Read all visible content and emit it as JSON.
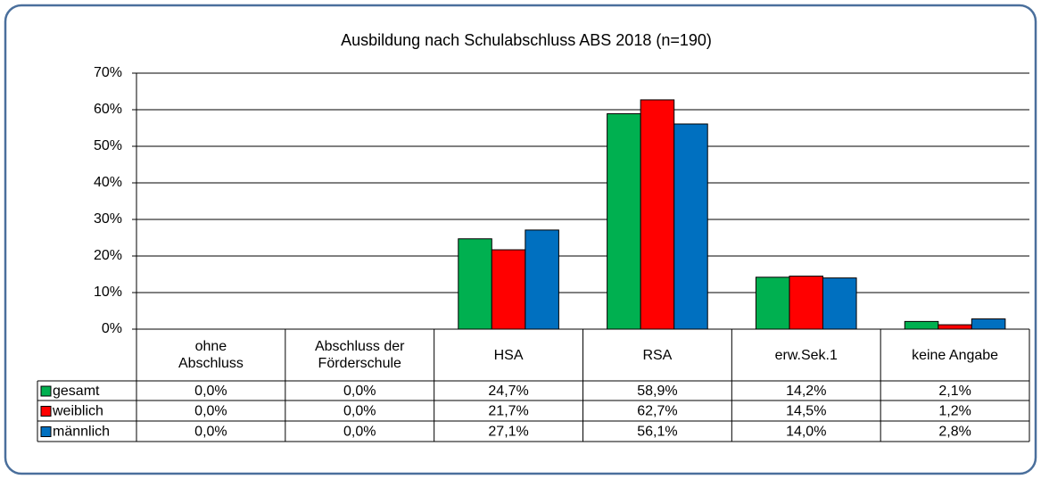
{
  "chart_data": {
    "type": "bar",
    "title": "Ausbildung  nach Schulabschluss ABS 2018 (n=190)",
    "categories": [
      "ohne\nAbschluss",
      "Abschluss der\nFörderschule",
      "HSA",
      "RSA",
      "erw.Sek.1",
      "keine Angabe"
    ],
    "series": [
      {
        "name": "gesamt",
        "color": "#00b050",
        "values": [
          0,
          0,
          24.7,
          58.9,
          14.2,
          2.1
        ],
        "value_labels": [
          "0,0%",
          "0,0%",
          "24,7%",
          "58,9%",
          "14,2%",
          "2,1%"
        ]
      },
      {
        "name": "weiblich",
        "color": "#ff0000",
        "values": [
          0,
          0,
          21.7,
          62.7,
          14.5,
          1.2
        ],
        "value_labels": [
          "0,0%",
          "0,0%",
          "21,7%",
          "62,7%",
          "14,5%",
          "1,2%"
        ]
      },
      {
        "name": "männlich",
        "color": "#0070c0",
        "values": [
          0,
          0,
          27.1,
          56.1,
          14.0,
          2.8
        ],
        "value_labels": [
          "0,0%",
          "0,0%",
          "27,1%",
          "56,1%",
          "14,0%",
          "2,8%"
        ]
      }
    ],
    "ylim": [
      0,
      70
    ],
    "yticks": [
      {
        "value": 0,
        "label": "0%"
      },
      {
        "value": 10,
        "label": "10%"
      },
      {
        "value": 20,
        "label": "20%"
      },
      {
        "value": 30,
        "label": "30%"
      },
      {
        "value": 40,
        "label": "40%"
      },
      {
        "value": 50,
        "label": "50%"
      },
      {
        "value": 60,
        "label": "60%"
      },
      {
        "value": 70,
        "label": "70%"
      }
    ],
    "grid": true
  }
}
